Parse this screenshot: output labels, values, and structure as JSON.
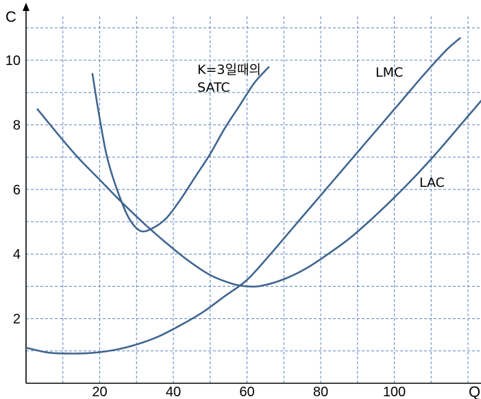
{
  "chart_data": {
    "type": "line",
    "title": "",
    "xlabel": "Q",
    "ylabel": "C",
    "xlim": [
      0,
      125
    ],
    "ylim": [
      0,
      11.4
    ],
    "x_ticks": [
      20,
      40,
      60,
      80,
      100
    ],
    "y_ticks": [
      2,
      4,
      6,
      8,
      10
    ],
    "grid": true,
    "series": [
      {
        "label_lines": [
          "K=3일때의",
          "SATC"
        ],
        "color": "#3e6590",
        "x": [
          18,
          20,
          22,
          25,
          28,
          31,
          34,
          38,
          42,
          46,
          50,
          54,
          58,
          62,
          66
        ],
        "y": [
          9.6,
          8.2,
          7.0,
          5.9,
          5.1,
          4.72,
          4.78,
          5.1,
          5.7,
          6.4,
          7.1,
          7.9,
          8.6,
          9.3,
          9.8
        ]
      },
      {
        "label": "LAC",
        "color": "#3e6590",
        "x": [
          3,
          8,
          14,
          20,
          26,
          32,
          38,
          44,
          50,
          56,
          60,
          64,
          70,
          76,
          82,
          88,
          94,
          100,
          106,
          112,
          118,
          124
        ],
        "y": [
          8.5,
          7.8,
          7.0,
          6.3,
          5.6,
          4.95,
          4.35,
          3.8,
          3.35,
          3.08,
          3.0,
          3.02,
          3.22,
          3.55,
          4.0,
          4.5,
          5.1,
          5.75,
          6.45,
          7.2,
          8.0,
          8.8
        ]
      },
      {
        "label": "LMC",
        "color": "#3e6590",
        "x": [
          0,
          6,
          12,
          18,
          24,
          30,
          36,
          42,
          48,
          54,
          60,
          66,
          72,
          78,
          84,
          90,
          96,
          102,
          108,
          114,
          118
        ],
        "y": [
          1.1,
          0.95,
          0.92,
          0.94,
          1.03,
          1.2,
          1.45,
          1.8,
          2.2,
          2.7,
          3.2,
          3.95,
          4.75,
          5.55,
          6.35,
          7.15,
          7.95,
          8.75,
          9.55,
          10.3,
          10.7
        ]
      }
    ]
  }
}
